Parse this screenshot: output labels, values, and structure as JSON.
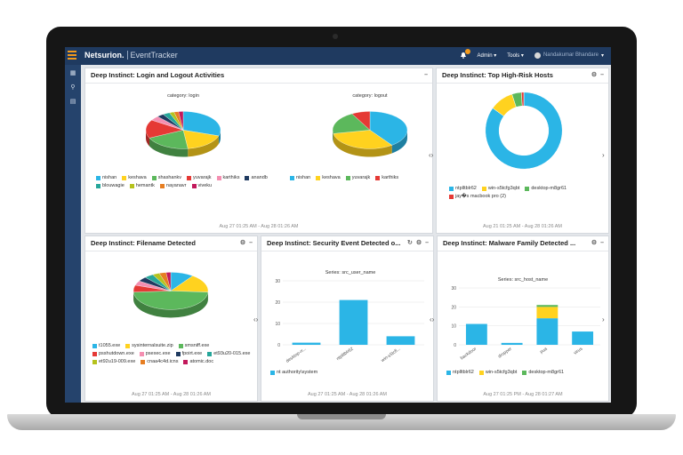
{
  "brand": {
    "name": "Netsurion.",
    "product": "EventTracker",
    "accent": "#f39a1c"
  },
  "topnav": {
    "notif_count": "3",
    "admin": "Admin",
    "tools": "Tools",
    "user": "Nandakumar Bhandare"
  },
  "panels": {
    "login": {
      "title": "Deep Instinct: Login and Logout Activities",
      "left_caption": "category: login",
      "right_caption": "category: logout",
      "left_legend": [
        {
          "label": "nishan",
          "color": "#2bb5e6"
        },
        {
          "label": "keshava",
          "color": "#ffd21f"
        },
        {
          "label": "shashankv",
          "color": "#5cb85c"
        },
        {
          "label": "yuvarajk",
          "color": "#e53935"
        },
        {
          "label": "karthiks",
          "color": "#f48fb1"
        },
        {
          "label": "anandb",
          "color": "#1f3a60"
        },
        {
          "label": "blouwagie",
          "color": "#26a69a"
        },
        {
          "label": "hemantk",
          "color": "#b5c21d"
        },
        {
          "label": "nayanavr",
          "color": "#e67e22"
        },
        {
          "label": "viveku",
          "color": "#c2185b"
        }
      ],
      "right_legend": [
        {
          "label": "nishan",
          "color": "#2bb5e6"
        },
        {
          "label": "keshava",
          "color": "#ffd21f"
        },
        {
          "label": "yuvarajk",
          "color": "#5cb85c"
        },
        {
          "label": "karthiks",
          "color": "#e53935"
        }
      ],
      "time": "Aug 27 01:25 AM - Aug 28 01:26 AM"
    },
    "hosts": {
      "title": "Deep Instinct: Top High-Risk Hosts",
      "legend": [
        {
          "label": "ntplltblr62",
          "color": "#2bb5e6"
        },
        {
          "label": "win-s5tcfg3qbt",
          "color": "#ffd21f"
        },
        {
          "label": "desktop-m8gr61",
          "color": "#5cb85c"
        },
        {
          "label": "jay�s macbook pro (2)",
          "color": "#e53935"
        }
      ],
      "time": "Aug 21 01:25 AM - Aug 28 01:26 AM"
    },
    "filename": {
      "title": "Deep Instinct: Filename Detected",
      "legend": [
        {
          "label": "t1055.exe",
          "color": "#2bb5e6"
        },
        {
          "label": "sysinternalsuite.zip",
          "color": "#ffd21f"
        },
        {
          "label": "smsniff.exe",
          "color": "#5cb85c"
        },
        {
          "label": "psshutdown.exe",
          "color": "#e53935"
        },
        {
          "label": "psexec.exe",
          "color": "#f48fb1"
        },
        {
          "label": "fpoirt.exe",
          "color": "#1f3a60"
        },
        {
          "label": "et93u20-015.exe",
          "color": "#26a69a"
        },
        {
          "label": "et92u19-009.exe",
          "color": "#b5c21d"
        },
        {
          "label": "cnaa4c4d.icns",
          "color": "#e67e22"
        },
        {
          "label": "atomic.doc",
          "color": "#c2185b"
        }
      ],
      "time": "Aug 27 01:25 AM - Aug 28 01:26 AM"
    },
    "security": {
      "title": "Deep Instinct: Security Event Detected o...",
      "series_label": "Series: src_user_name",
      "legend": [
        {
          "label": "nt authority\\system",
          "color": "#2bb5e6"
        }
      ],
      "time": "Aug 27 01:25 AM - Aug 28 01:26 AM"
    },
    "malware": {
      "title": "Deep Instinct: Malware Family Detected ...",
      "series_label": "Series: src_host_name",
      "legend": [
        {
          "label": "ntplltblr62",
          "color": "#2bb5e6"
        },
        {
          "label": "win-s5tcfg3qbt",
          "color": "#ffd21f"
        },
        {
          "label": "desktop-m8gr61",
          "color": "#5cb85c"
        }
      ],
      "time": "Aug 27 01:25 PM - Aug 28 01:27 AM"
    }
  },
  "chart_data": [
    {
      "type": "pie",
      "title": "category: login",
      "categories": [
        "nishan",
        "keshava",
        "shashankv",
        "yuvarajk",
        "karthiks",
        "anandb",
        "blouwagie",
        "hemantk",
        "nayanavr",
        "viveku"
      ],
      "values": [
        30,
        18,
        20,
        16,
        4,
        3,
        3,
        2,
        2,
        2
      ],
      "colors": [
        "#2bb5e6",
        "#ffd21f",
        "#5cb85c",
        "#e53935",
        "#f48fb1",
        "#1f3a60",
        "#26a69a",
        "#b5c21d",
        "#e67e22",
        "#c2185b"
      ]
    },
    {
      "type": "pie",
      "title": "category: logout",
      "categories": [
        "nishan",
        "keshava",
        "yuvarajk",
        "karthiks"
      ],
      "values": [
        40,
        32,
        20,
        8
      ],
      "colors": [
        "#2bb5e6",
        "#ffd21f",
        "#5cb85c",
        "#e53935"
      ]
    },
    {
      "type": "pie",
      "title": "Top High-Risk Hosts (donut)",
      "categories": [
        "ntplltblr62",
        "win-s5tcfg3qbt",
        "desktop-m8gr61",
        "jay�s macbook pro (2)"
      ],
      "values": [
        85,
        10,
        4,
        1
      ],
      "colors": [
        "#2bb5e6",
        "#ffd21f",
        "#5cb85c",
        "#e53935"
      ]
    },
    {
      "type": "pie",
      "title": "Filename Detected",
      "categories": [
        "t1055.exe",
        "sysinternalsuite.zip",
        "smsniff.exe",
        "psshutdown.exe",
        "psexec.exe",
        "fpoirt.exe",
        "et93u20-015.exe",
        "et92u19-009.exe",
        "cnaa4c4d.icns",
        "atomic.doc"
      ],
      "values": [
        10,
        16,
        48,
        6,
        4,
        4,
        4,
        3,
        3,
        2
      ],
      "colors": [
        "#2bb5e6",
        "#ffd21f",
        "#5cb85c",
        "#e53935",
        "#f48fb1",
        "#1f3a60",
        "#26a69a",
        "#b5c21d",
        "#e67e22",
        "#c2185b"
      ]
    },
    {
      "type": "bar",
      "title": "Series: src_user_name",
      "categories": [
        "desktop-rr...",
        "ntplltblr62",
        "win-s5tcfl..."
      ],
      "series": [
        {
          "name": "nt authority\\system",
          "values": [
            1,
            21,
            4
          ]
        }
      ],
      "ylim": [
        0,
        30
      ],
      "yticks": [
        0,
        10,
        20,
        30
      ]
    },
    {
      "type": "bar",
      "title": "Series: src_host_name",
      "categories": [
        "backdoor",
        "dropper",
        "pua",
        "virus"
      ],
      "series": [
        {
          "name": "ntplltblr62",
          "values": [
            11,
            1,
            14,
            7
          ]
        },
        {
          "name": "win-s5tcfg3qbt",
          "values": [
            0,
            0,
            6,
            0
          ]
        },
        {
          "name": "desktop-m8gr61",
          "values": [
            0,
            0,
            1,
            0
          ]
        }
      ],
      "ylim": [
        0,
        30
      ],
      "yticks": [
        0,
        10,
        20,
        30
      ]
    }
  ]
}
